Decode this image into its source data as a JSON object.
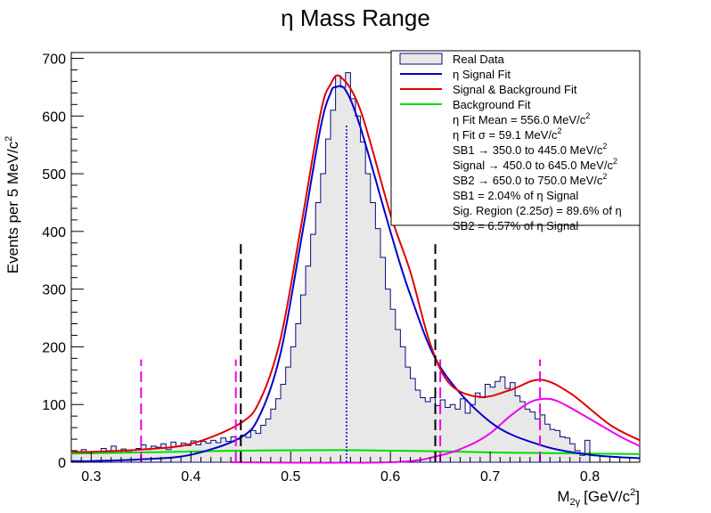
{
  "chart_data": {
    "type": "histogram",
    "title": "η Mass Range",
    "xlabel": "M",
    "xlabel_sub": "2γ",
    "xlabel_unit": "[GeV/c",
    "xlabel_sup": "2",
    "xlabel_close": "]",
    "ylabel": "Events per 5 MeV/c",
    "ylabel_sup": "2",
    "xlim": [
      0.28,
      0.85
    ],
    "ylim": [
      0,
      710
    ],
    "x_ticks": [
      0.3,
      0.4,
      0.5,
      0.6,
      0.7,
      0.8
    ],
    "x_tick_labels": [
      "0.3",
      "0.4",
      "0.5",
      "0.6",
      "0.7",
      "0.8"
    ],
    "y_ticks": [
      0,
      100,
      200,
      300,
      400,
      500,
      600,
      700
    ],
    "y_tick_labels": [
      "0",
      "100",
      "200",
      "300",
      "400",
      "500",
      "600",
      "700"
    ],
    "bin_width": 0.005,
    "hist_x_start": 0.28,
    "hist_values": [
      20,
      17,
      22,
      15,
      18,
      17,
      24,
      20,
      28,
      16,
      23,
      18,
      21,
      24,
      30,
      22,
      28,
      26,
      32,
      22,
      35,
      27,
      33,
      29,
      37,
      30,
      36,
      33,
      38,
      34,
      42,
      36,
      44,
      40,
      47,
      43,
      55,
      50,
      64,
      75,
      92,
      110,
      135,
      165,
      200,
      240,
      290,
      340,
      395,
      450,
      500,
      560,
      610,
      670,
      650,
      675,
      630,
      600,
      555,
      500,
      450,
      405,
      355,
      300,
      265,
      230,
      200,
      165,
      145,
      125,
      112,
      105,
      112,
      98,
      108,
      95,
      100,
      92,
      110,
      85,
      100,
      120,
      112,
      135,
      130,
      140,
      148,
      128,
      138,
      115,
      105,
      92,
      87,
      75,
      82,
      66,
      57,
      55,
      44,
      42,
      32,
      20,
      12,
      38
    ],
    "signal_curve": [
      [
        0.28,
        2
      ],
      [
        0.3,
        2
      ],
      [
        0.35,
        5
      ],
      [
        0.4,
        13
      ],
      [
        0.45,
        43
      ],
      [
        0.47,
        85
      ],
      [
        0.49,
        190
      ],
      [
        0.51,
        380
      ],
      [
        0.53,
        580
      ],
      [
        0.54,
        640
      ],
      [
        0.545,
        650
      ],
      [
        0.555,
        645
      ],
      [
        0.57,
        580
      ],
      [
        0.6,
        400
      ],
      [
        0.62,
        290
      ],
      [
        0.65,
        165
      ],
      [
        0.7,
        70
      ],
      [
        0.75,
        30
      ],
      [
        0.8,
        13
      ],
      [
        0.85,
        7
      ]
    ],
    "total_curve": [
      [
        0.28,
        18
      ],
      [
        0.3,
        18
      ],
      [
        0.35,
        22
      ],
      [
        0.4,
        32
      ],
      [
        0.45,
        68
      ],
      [
        0.47,
        110
      ],
      [
        0.49,
        215
      ],
      [
        0.51,
        405
      ],
      [
        0.53,
        605
      ],
      [
        0.54,
        655
      ],
      [
        0.55,
        668
      ],
      [
        0.57,
        610
      ],
      [
        0.6,
        430
      ],
      [
        0.62,
        330
      ],
      [
        0.64,
        205
      ],
      [
        0.66,
        135
      ],
      [
        0.69,
        113
      ],
      [
        0.72,
        125
      ],
      [
        0.75,
        143
      ],
      [
        0.78,
        120
      ],
      [
        0.82,
        65
      ],
      [
        0.85,
        38
      ]
    ],
    "background_curve": [
      [
        0.28,
        15
      ],
      [
        0.35,
        17
      ],
      [
        0.45,
        20
      ],
      [
        0.55,
        21
      ],
      [
        0.6,
        20
      ],
      [
        0.65,
        19
      ],
      [
        0.7,
        17
      ],
      [
        0.75,
        16
      ],
      [
        0.8,
        15
      ],
      [
        0.85,
        14
      ]
    ],
    "magenta_curve": [
      [
        0.44,
        0
      ],
      [
        0.6,
        0
      ],
      [
        0.65,
        12
      ],
      [
        0.68,
        30
      ],
      [
        0.7,
        50
      ],
      [
        0.72,
        80
      ],
      [
        0.74,
        104
      ],
      [
        0.755,
        110
      ],
      [
        0.77,
        104
      ],
      [
        0.8,
        75
      ],
      [
        0.83,
        45
      ],
      [
        0.85,
        28
      ]
    ],
    "vlines_black": [
      0.45,
      0.645
    ],
    "vlines_magenta": [
      0.35,
      0.445,
      0.65,
      0.75
    ],
    "vline_mean": 0.556,
    "vline_black_top": 378,
    "vline_magenta_top": 178,
    "legend_placement": "top-right",
    "legend": [
      {
        "label": "Real Data",
        "kind": "box",
        "color": "#0a0a80"
      },
      {
        "label": "η Signal Fit",
        "kind": "line",
        "color": "#0000cc"
      },
      {
        "label": "Signal & Background Fit",
        "kind": "line",
        "color": "#e00000"
      },
      {
        "label": "Background Fit",
        "kind": "line",
        "color": "#00dd00"
      }
    ],
    "legend_text": [
      {
        "main": "η Fit Mean = 556.0 MeV/c",
        "sup": "2"
      },
      {
        "main": "η Fit σ = 59.1 MeV/c",
        "sup": "2"
      },
      {
        "main": "SB1 → 350.0 to 445.0 MeV/c",
        "sup": "2"
      },
      {
        "main": "Signal → 450.0 to 645.0 MeV/c",
        "sup": "2"
      },
      {
        "main": "SB2 → 650.0 to 750.0 MeV/c",
        "sup": "2"
      },
      {
        "main": "SB1 = 2.04% of η Signal",
        "sup": ""
      },
      {
        "main": "Sig. Region (2.25σ) = 89.6% of η",
        "sup": ""
      },
      {
        "main": "SB2 = 6.57% of η Signal",
        "sup": ""
      }
    ],
    "colors": {
      "hist_fill": "#e8e8e8",
      "hist_line": "#0a0a80",
      "signal": "#0000cc",
      "total": "#e00000",
      "background": "#00dd00",
      "magenta": "#ee00ee",
      "black_dash": "#000000",
      "mean_line": "#0000cc"
    }
  }
}
